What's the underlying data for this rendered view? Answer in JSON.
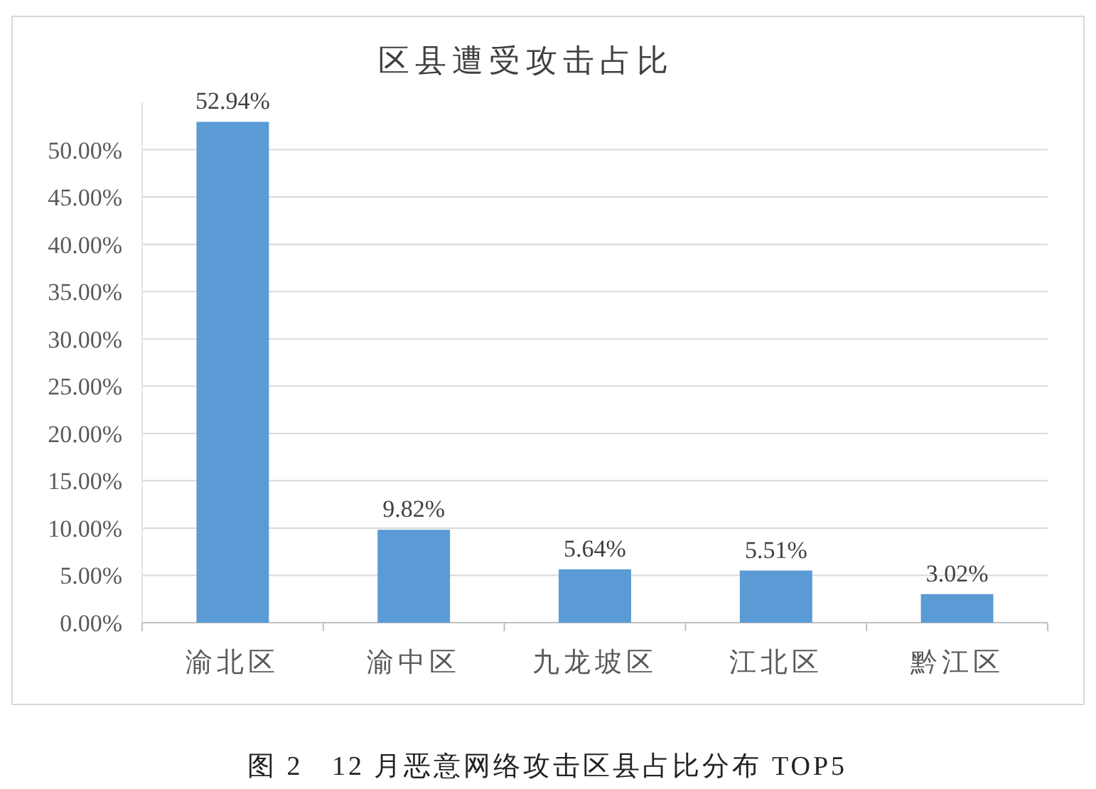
{
  "chart_data": {
    "type": "bar",
    "title": "区县遭受攻击占比",
    "categories": [
      "渝北区",
      "渝中区",
      "九龙坡区",
      "江北区",
      "黔江区"
    ],
    "values": [
      52.94,
      9.82,
      5.64,
      5.51,
      3.02
    ],
    "value_labels": [
      "52.94%",
      "9.82%",
      "5.64%",
      "5.51%",
      "3.02%"
    ],
    "color": "#5b9bd5",
    "ylim": [
      0,
      55
    ],
    "yticks": [
      {
        "value": 0,
        "label": "0.00%"
      },
      {
        "value": 5,
        "label": "5.00%"
      },
      {
        "value": 10,
        "label": "10.00%"
      },
      {
        "value": 15,
        "label": "15.00%"
      },
      {
        "value": 20,
        "label": "20.00%"
      },
      {
        "value": 25,
        "label": "25.00%"
      },
      {
        "value": 30,
        "label": "30.00%"
      },
      {
        "value": 35,
        "label": "35.00%"
      },
      {
        "value": 40,
        "label": "40.00%"
      },
      {
        "value": 45,
        "label": "45.00%"
      },
      {
        "value": 50,
        "label": "50.00%"
      }
    ],
    "grid": "y",
    "annotations": [
      "图 2   12 月恶意网络攻击区县占比分布 TOP5"
    ]
  }
}
